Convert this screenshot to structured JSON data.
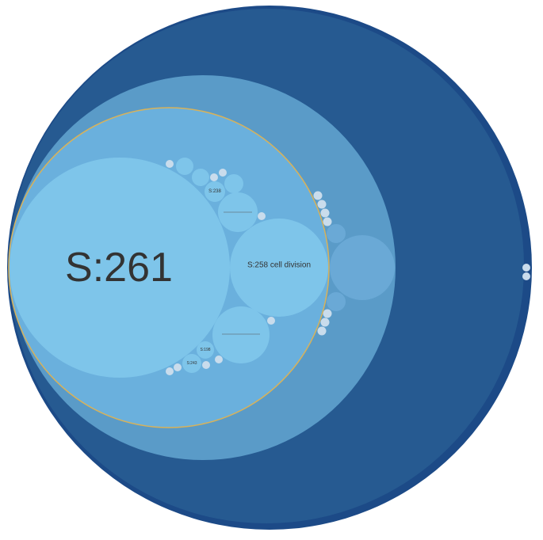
{
  "colors": {
    "outer_ring": "#1c4a87",
    "level1": "#265a91",
    "level2": "#5a9bc8",
    "level3": "#6ab0dd",
    "level4": "#7ec5ea",
    "leaf": "#c9dcec",
    "selected_outline": "#d8b25a",
    "label": "#333333"
  },
  "labels": {
    "main_node": "S:261",
    "cell_division": "S:258 cell division",
    "small_upper": "S:238",
    "small_lower_1": "S:198",
    "small_lower_2": "S:243"
  }
}
